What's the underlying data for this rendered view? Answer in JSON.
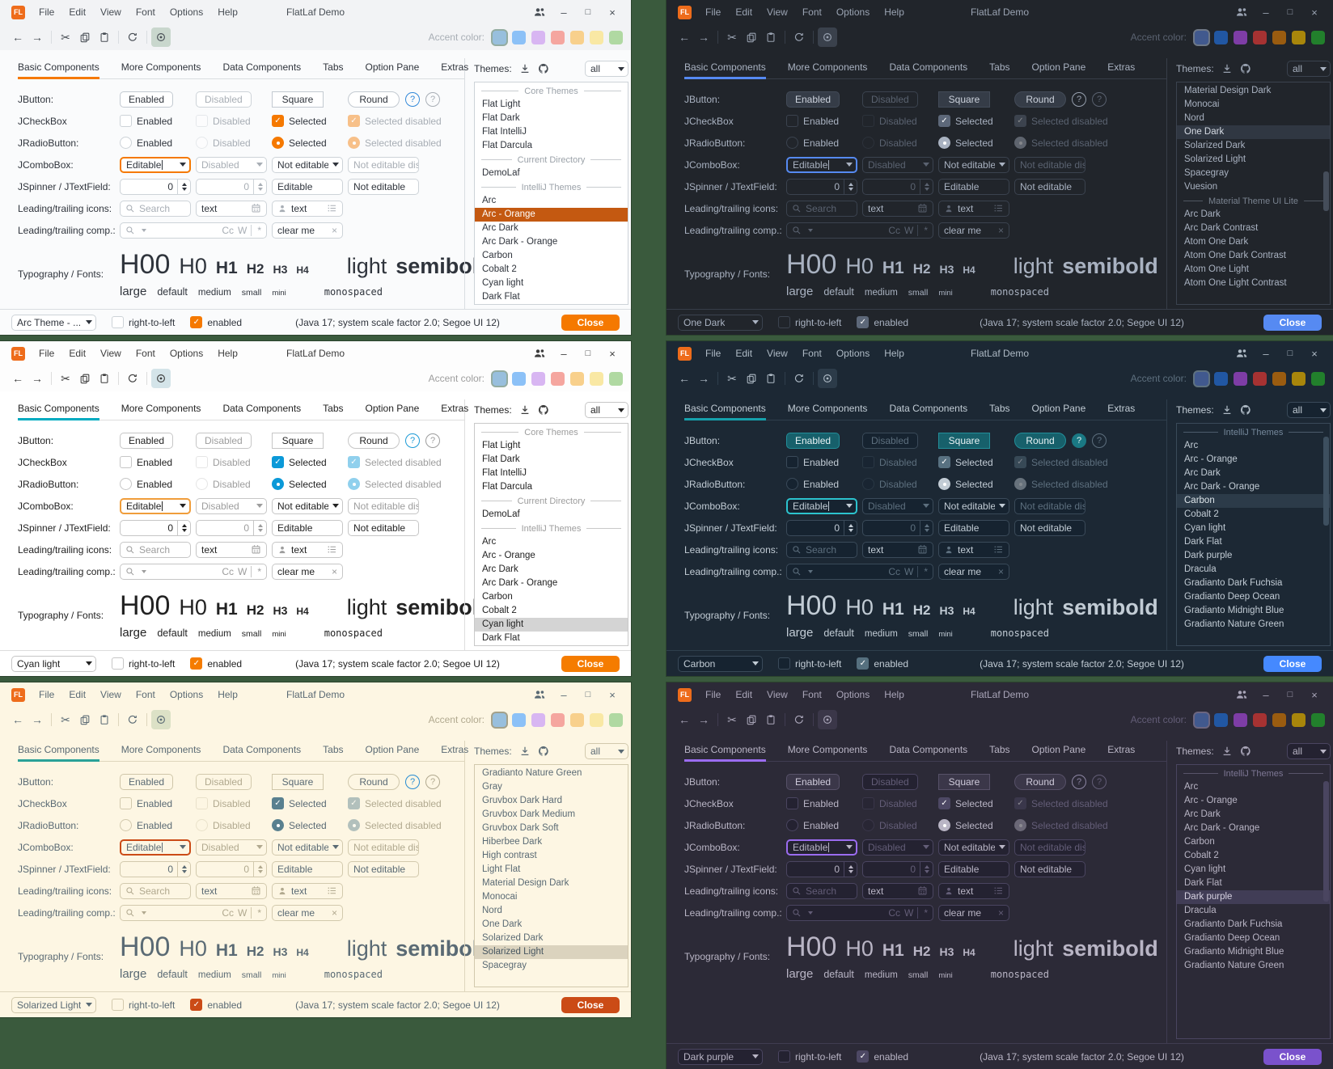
{
  "common": {
    "logo_text": "FL",
    "window_title": "FlatLaf Demo",
    "menus": [
      "File",
      "Edit",
      "View",
      "Font",
      "Options",
      "Help"
    ],
    "accent_label": "Accent color:",
    "tabs": [
      "Basic Components",
      "More Components",
      "Data Components",
      "Tabs",
      "Option Pane",
      "Extras"
    ],
    "themes_label": "Themes:",
    "themes_filter": "all",
    "row_labels": [
      "JButton:",
      "JCheckBox",
      "JRadioButton:",
      "JComboBox:",
      "JSpinner / JTextField:",
      "Leading/trailing icons:",
      "Leading/trailing comp.:",
      "Typography / Fonts:"
    ],
    "jbutton_labels": [
      "Enabled",
      "Disabled",
      "Square",
      "Round"
    ],
    "help_label": "?",
    "jcheckbox_labels": [
      "Enabled",
      "Disabled",
      "Selected",
      "Selected disabled"
    ],
    "jradio_labels": [
      "Enabled",
      "Disabled",
      "Selected",
      "Selected disabled"
    ],
    "jcombo_values": [
      "Editable",
      "Disabled",
      "Not editable",
      "Not editable dis..."
    ],
    "jspinner_value": "0",
    "jspinner_fields": [
      "Editable",
      "Not editable"
    ],
    "icons_row": {
      "search_placeholder": "Search",
      "text_value": "text"
    },
    "comp_row": {
      "match_case": "Cc",
      "whole_word": "W",
      "regex": "*",
      "clear_value": "clear me"
    },
    "typography": {
      "samples": [
        "H00",
        "H0",
        "H1",
        "H2",
        "H3",
        "H4"
      ],
      "weights": [
        "light",
        "semibold"
      ],
      "sizes": [
        "large",
        "default",
        "medium",
        "small",
        "mini"
      ],
      "mono_label": "monospaced"
    },
    "footer": {
      "rtl_label": "right-to-left",
      "enabled_label": "enabled",
      "status": "(Java 17;  system scale factor 2.0; Segoe UI 12)",
      "close_label": "Close"
    },
    "icons": {
      "minimize": "–",
      "maximize": "□",
      "close": "×",
      "back": "←",
      "forward": "→",
      "cut": "✂",
      "clear": "×"
    }
  },
  "panels": [
    {
      "id": "arc-orange",
      "mode": "light",
      "footer_theme": "Arc Theme - ...",
      "accent_swatches": [
        "#98bfdd",
        "#8cc1f7",
        "#d8b6f2",
        "#f5a69f",
        "#f8d08c",
        "#f9e8a4",
        "#b0d9a2"
      ],
      "swatch_selected": 0,
      "themes": [
        {
          "type": "sep",
          "label": "Core Themes"
        },
        {
          "type": "item",
          "label": "Flat Light"
        },
        {
          "type": "item",
          "label": "Flat Dark"
        },
        {
          "type": "item",
          "label": "Flat IntelliJ"
        },
        {
          "type": "item",
          "label": "Flat Darcula"
        },
        {
          "type": "sep",
          "label": "Current Directory"
        },
        {
          "type": "item",
          "label": "DemoLaf"
        },
        {
          "type": "sep",
          "label": "IntelliJ Themes"
        },
        {
          "type": "item",
          "label": "Arc"
        },
        {
          "type": "item",
          "label": "Arc - Orange",
          "selected": true
        },
        {
          "type": "item",
          "label": "Arc Dark"
        },
        {
          "type": "item",
          "label": "Arc Dark - Orange"
        },
        {
          "type": "item",
          "label": "Carbon"
        },
        {
          "type": "item",
          "label": "Cobalt 2"
        },
        {
          "type": "item",
          "label": "Cyan light"
        },
        {
          "type": "item",
          "label": "Dark Flat"
        }
      ],
      "scrollbar": null,
      "colors": {
        "win_bg": "#f2f3f5",
        "content_bg": "#fafbfc",
        "field_bg": "#ffffff",
        "field_border": "#cdd3d8",
        "text": "#2f343c",
        "muted": "#a8aeb5",
        "titlebar_text": "#474d54",
        "tabline": "#f57900",
        "tab_border": "#d9dde1",
        "focus": "#f57900",
        "list_bg": "#ffffff",
        "list_border": "#cdd3d8",
        "sel_bg": "#c45911",
        "sel_text": "#ffffff",
        "sep_text": "#9ba2a9",
        "btn_bg": "#ffffff",
        "btn_border": "#c3cad1",
        "btn_text": "#2f343c",
        "check_bg": "#f57900",
        "radio": "#f57900",
        "close_bg": "#f57900",
        "close_text": "#ffffff",
        "eye_bg": "#c9d7cd",
        "help1": "#2f87d8",
        "help1_bg": "transparent",
        "help1_text": "#2f87d8",
        "divider": "#d9dde1",
        "footer_border": "#d9dde1",
        "footer_check": "#f57900",
        "scroll_thumb": "transparent",
        "swatch_ring": "#93aca1"
      }
    },
    {
      "id": "one-dark",
      "mode": "dark",
      "footer_theme": "One Dark",
      "accent_swatches": [
        "#41598e",
        "#2157a3",
        "#7e3da6",
        "#a63232",
        "#9a5c10",
        "#a8860b",
        "#22802c"
      ],
      "swatch_selected": 0,
      "themes": [
        {
          "type": "item",
          "label": "Material Design Dark"
        },
        {
          "type": "item",
          "label": "Monocai"
        },
        {
          "type": "item",
          "label": "Nord"
        },
        {
          "type": "item",
          "label": "One Dark",
          "selected": true
        },
        {
          "type": "item",
          "label": "Solarized Dark"
        },
        {
          "type": "item",
          "label": "Solarized Light"
        },
        {
          "type": "item",
          "label": "Spacegray"
        },
        {
          "type": "item",
          "label": "Vuesion"
        },
        {
          "type": "sep",
          "label": "Material Theme UI Lite"
        },
        {
          "type": "item",
          "label": "Arc Dark"
        },
        {
          "type": "item",
          "label": "Arc Dark Contrast"
        },
        {
          "type": "item",
          "label": "Atom One Dark"
        },
        {
          "type": "item",
          "label": "Atom One Dark Contrast"
        },
        {
          "type": "item",
          "label": "Atom One Light"
        },
        {
          "type": "item",
          "label": "Atom One Light Contrast"
        }
      ],
      "scrollbar": {
        "top_pct": 40,
        "height_pct": 18
      },
      "colors": {
        "win_bg": "#21252b",
        "content_bg": "#21252b",
        "field_bg": "#21252b",
        "field_border": "#3b434f",
        "text": "#a9b2c1",
        "muted": "#5a6270",
        "titlebar_text": "#9aa3b2",
        "tabline": "#568af2",
        "tab_border": "#373e49",
        "focus": "#568af2",
        "list_bg": "#21252b",
        "list_border": "#3b434f",
        "sel_bg": "#303742",
        "sel_text": "#d6dbe4",
        "sep_text": "#79828f",
        "btn_bg": "#353c47",
        "btn_border": "#434b58",
        "btn_text": "#ccd2dc",
        "check_bg": "#5d6879",
        "radio": "#a9b2c1",
        "close_bg": "#568af2",
        "close_text": "#ffffff",
        "eye_bg": "#3a414c",
        "help1": "#98a1b0",
        "help1_bg": "transparent",
        "help1_text": "#98a1b0",
        "divider": "#373e49",
        "footer_border": "#373e49",
        "footer_check": "#5d6879",
        "scroll_thumb": "#454d5a",
        "swatch_ring": "#6e7887"
      }
    },
    {
      "id": "cyan-light",
      "mode": "light",
      "footer_theme": "Cyan light",
      "accent_swatches": [
        "#98bfdd",
        "#8cc1f7",
        "#d8b6f2",
        "#f5a69f",
        "#f8d08c",
        "#f9e8a4",
        "#b0d9a2"
      ],
      "swatch_selected": 0,
      "themes": [
        {
          "type": "sep",
          "label": "Core Themes"
        },
        {
          "type": "item",
          "label": "Flat Light"
        },
        {
          "type": "item",
          "label": "Flat Dark"
        },
        {
          "type": "item",
          "label": "Flat IntelliJ"
        },
        {
          "type": "item",
          "label": "Flat Darcula"
        },
        {
          "type": "sep",
          "label": "Current Directory"
        },
        {
          "type": "item",
          "label": "DemoLaf"
        },
        {
          "type": "sep",
          "label": "IntelliJ Themes"
        },
        {
          "type": "item",
          "label": "Arc"
        },
        {
          "type": "item",
          "label": "Arc - Orange"
        },
        {
          "type": "item",
          "label": "Arc Dark"
        },
        {
          "type": "item",
          "label": "Arc Dark - Orange"
        },
        {
          "type": "item",
          "label": "Carbon"
        },
        {
          "type": "item",
          "label": "Cobalt 2"
        },
        {
          "type": "item",
          "label": "Cyan light",
          "selected": true
        },
        {
          "type": "item",
          "label": "Dark Flat"
        }
      ],
      "scrollbar": null,
      "colors": {
        "win_bg": "#fdfdfd",
        "content_bg": "#ffffff",
        "field_bg": "#ffffff",
        "field_border": "#c6c6c6",
        "text": "#222222",
        "muted": "#9d9d9d",
        "titlebar_text": "#3c3c3c",
        "tabline": "#00abc0",
        "tab_border": "#dddddd",
        "focus": "#f09d3b",
        "list_bg": "#ffffff",
        "list_border": "#c9c9c9",
        "sel_bg": "#d4d4d4",
        "sel_text": "#222222",
        "sep_text": "#9d9d9d",
        "btn_bg": "#ffffff",
        "btn_border": "#c6c6c6",
        "btn_text": "#222222",
        "check_bg": "#0b99d8",
        "radio": "#0b99d8",
        "close_bg": "#f57c00",
        "close_text": "#ffffff",
        "eye_bg": "#d4e4e9",
        "help1": "#1b9ad6",
        "help1_bg": "transparent",
        "help1_text": "#1b9ad6",
        "divider": "#dddddd",
        "footer_border": "#dddddd",
        "footer_check": "#f57c00",
        "scroll_thumb": "transparent",
        "swatch_ring": "#93aca1"
      }
    },
    {
      "id": "carbon",
      "mode": "dark",
      "footer_theme": "Carbon",
      "accent_swatches": [
        "#41598e",
        "#2157a3",
        "#7e3da6",
        "#a63232",
        "#9a5c10",
        "#a8860b",
        "#22802c"
      ],
      "swatch_selected": 0,
      "themes": [
        {
          "type": "sep",
          "label": "IntelliJ Themes"
        },
        {
          "type": "item",
          "label": "Arc"
        },
        {
          "type": "item",
          "label": "Arc - Orange"
        },
        {
          "type": "item",
          "label": "Arc Dark"
        },
        {
          "type": "item",
          "label": "Arc Dark - Orange"
        },
        {
          "type": "item",
          "label": "Carbon",
          "selected": true
        },
        {
          "type": "item",
          "label": "Cobalt 2"
        },
        {
          "type": "item",
          "label": "Cyan light"
        },
        {
          "type": "item",
          "label": "Dark Flat"
        },
        {
          "type": "item",
          "label": "Dark purple"
        },
        {
          "type": "item",
          "label": "Dracula"
        },
        {
          "type": "item",
          "label": "Gradianto Dark Fuchsia"
        },
        {
          "type": "item",
          "label": "Gradianto Deep Ocean"
        },
        {
          "type": "item",
          "label": "Gradianto Midnight Blue"
        },
        {
          "type": "item",
          "label": "Gradianto Nature Green"
        }
      ],
      "scrollbar": {
        "top_pct": 6,
        "height_pct": 40
      },
      "colors": {
        "win_bg": "#1c2834",
        "content_bg": "#1c2834",
        "field_bg": "#162330",
        "field_border": "#3a4a59",
        "text": "#c2ccd5",
        "muted": "#5d6f7e",
        "titlebar_text": "#aebac5",
        "tabline": "#16a1ac",
        "tab_border": "#2f3f4d",
        "focus": "#2cc3ce",
        "list_bg": "#1c2834",
        "list_border": "#3a4a59",
        "sel_bg": "#2c3b49",
        "sel_text": "#dde5ea",
        "sep_text": "#74879a",
        "btn_bg": "#17606b",
        "btn_border": "#228f9a",
        "btn_text": "#e9f3f5",
        "check_bg": "#587181",
        "radio": "#c2ccd5",
        "close_bg": "#4589ff",
        "close_text": "#ffffff",
        "eye_bg": "#2c3b49",
        "help1": "#1a7984",
        "help1_bg": "#1a7984",
        "help1_text": "#e9f3f5",
        "divider": "#2f3f4d",
        "footer_border": "#2f3f4d",
        "footer_check": "#56707f",
        "scroll_thumb": "#3d4f5f",
        "swatch_ring": "#5f7280"
      }
    },
    {
      "id": "solarized-light",
      "mode": "light",
      "footer_theme": "Solarized Light",
      "accent_swatches": [
        "#98bfdd",
        "#8cc1f7",
        "#d8b6f2",
        "#f5a69f",
        "#f8d08c",
        "#f9e8a4",
        "#b0d9a2"
      ],
      "swatch_selected": 0,
      "themes": [
        {
          "type": "item",
          "label": "Gradianto Nature Green"
        },
        {
          "type": "item",
          "label": "Gray"
        },
        {
          "type": "item",
          "label": "Gruvbox Dark Hard"
        },
        {
          "type": "item",
          "label": "Gruvbox Dark Medium"
        },
        {
          "type": "item",
          "label": "Gruvbox Dark Soft"
        },
        {
          "type": "item",
          "label": "Hiberbee Dark"
        },
        {
          "type": "item",
          "label": "High contrast"
        },
        {
          "type": "item",
          "label": "Light Flat"
        },
        {
          "type": "item",
          "label": "Material Design Dark"
        },
        {
          "type": "item",
          "label": "Monocai"
        },
        {
          "type": "item",
          "label": "Nord"
        },
        {
          "type": "item",
          "label": "One Dark"
        },
        {
          "type": "item",
          "label": "Solarized Dark"
        },
        {
          "type": "item",
          "label": "Solarized Light",
          "selected": true
        },
        {
          "type": "item",
          "label": "Spacegray"
        }
      ],
      "scrollbar": null,
      "colors": {
        "win_bg": "#fdf6e3",
        "content_bg": "#fdf6e3",
        "field_bg": "#fdf6e3",
        "field_border": "#d2c9ad",
        "text": "#5a6a74",
        "muted": "#b1a98f",
        "titlebar_text": "#5a6a74",
        "tabline": "#2aa198",
        "tab_border": "#ded6bd",
        "focus": "#cb4b16",
        "list_bg": "#fdf6e3",
        "list_border": "#d2c9ad",
        "sel_bg": "#dbd3be",
        "sel_text": "#475660",
        "sep_text": "#b1a98f",
        "btn_bg": "#fdf6e3",
        "btn_border": "#cfc6a9",
        "btn_text": "#5a6a74",
        "check_bg": "#59808f",
        "radio": "#59808f",
        "close_bg": "#cb4b16",
        "close_text": "#ffffff",
        "eye_bg": "#dce1c6",
        "help1": "#268bd2",
        "help1_bg": "transparent",
        "help1_text": "#268bd2",
        "divider": "#ded6bd",
        "footer_border": "#ded6bd",
        "footer_check": "#cb4b16",
        "scroll_thumb": "transparent",
        "swatch_ring": "#a3a18a"
      }
    },
    {
      "id": "dark-purple",
      "mode": "dark",
      "footer_theme": "Dark purple",
      "accent_swatches": [
        "#41598e",
        "#2157a3",
        "#7e3da6",
        "#a63232",
        "#9a5c10",
        "#a8860b",
        "#22802c"
      ],
      "swatch_selected": 0,
      "themes": [
        {
          "type": "sep",
          "label": "IntelliJ Themes"
        },
        {
          "type": "item",
          "label": "Arc"
        },
        {
          "type": "item",
          "label": "Arc - Orange"
        },
        {
          "type": "item",
          "label": "Arc Dark"
        },
        {
          "type": "item",
          "label": "Arc Dark - Orange"
        },
        {
          "type": "item",
          "label": "Carbon"
        },
        {
          "type": "item",
          "label": "Cobalt 2"
        },
        {
          "type": "item",
          "label": "Cyan light"
        },
        {
          "type": "item",
          "label": "Dark Flat"
        },
        {
          "type": "item",
          "label": "Dark purple",
          "selected": true
        },
        {
          "type": "item",
          "label": "Dracula"
        },
        {
          "type": "item",
          "label": "Gradianto Dark Fuchsia"
        },
        {
          "type": "item",
          "label": "Gradianto Deep Ocean"
        },
        {
          "type": "item",
          "label": "Gradianto Midnight Blue"
        },
        {
          "type": "item",
          "label": "Gradianto Nature Green"
        }
      ],
      "scrollbar": {
        "top_pct": 6,
        "height_pct": 44
      },
      "colors": {
        "win_bg": "#2c2a37",
        "content_bg": "#2c2a37",
        "field_bg": "#242231",
        "field_border": "#4a4560",
        "text": "#b9b5c5",
        "muted": "#635d77",
        "titlebar_text": "#a9a5b8",
        "tabline": "#9b6cf0",
        "tab_border": "#403c51",
        "focus": "#9b6cf0",
        "list_bg": "#2c2a37",
        "list_border": "#4a4560",
        "sel_bg": "#413d56",
        "sel_text": "#d7d3e2",
        "sep_text": "#7d7794",
        "btn_bg": "#3b3749",
        "btn_border": "#575168",
        "btn_text": "#cfcbdb",
        "check_bg": "#4d4864",
        "radio": "#b9b5c5",
        "close_bg": "#7a52cc",
        "close_text": "#ffffff",
        "eye_bg": "#3b3749",
        "help1": "#8d86a4",
        "help1_bg": "transparent",
        "help1_text": "#8d86a4",
        "divider": "#403c51",
        "footer_border": "#403c51",
        "footer_check": "#4d4864",
        "scroll_thumb": "#4a4560",
        "swatch_ring": "#6c6680"
      }
    }
  ]
}
